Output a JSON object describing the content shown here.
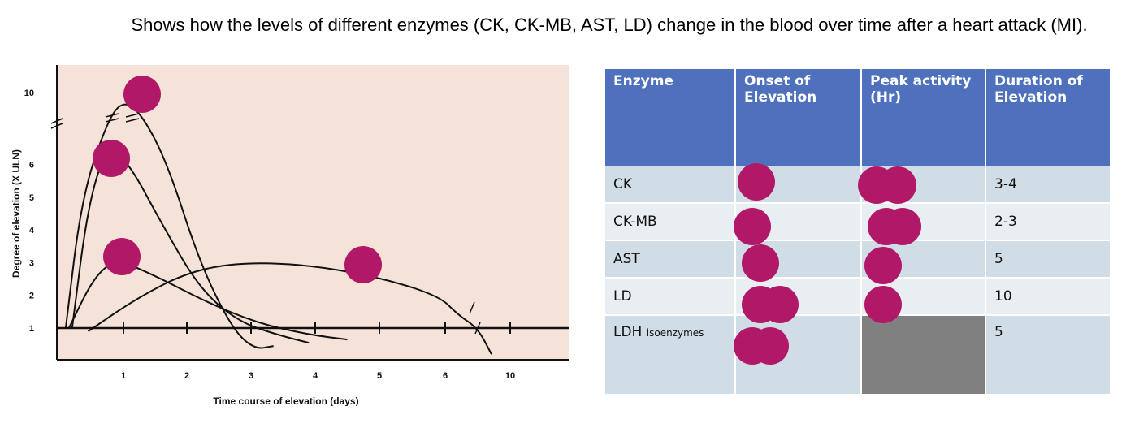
{
  "caption": "Shows how the levels of different enzymes (CK, CK-MB, AST, LD) change in the blood over time after a heart attack (MI).",
  "chart_data": {
    "type": "line",
    "xlabel": "Time course of elevation (days)",
    "ylabel": "Degree of elevation (X ULN)",
    "x_ticks": [
      "1",
      "2",
      "3",
      "4",
      "5",
      "6",
      "10"
    ],
    "y_ticks": [
      "1",
      "2",
      "3",
      "4",
      "5",
      "6",
      "10"
    ],
    "background": "#f5e3d9",
    "line_color": "#111111",
    "series": [
      {
        "points": [
          [
            0.1,
            1
          ],
          [
            0.35,
            5
          ],
          [
            0.75,
            8.5
          ],
          [
            1,
            9.6
          ],
          [
            1.3,
            8.8
          ],
          [
            1.7,
            6
          ],
          [
            2.2,
            3
          ],
          [
            2.7,
            1
          ],
          [
            3.05,
            0.35
          ],
          [
            3.35,
            0.45
          ]
        ]
      },
      {
        "points": [
          [
            0.2,
            1
          ],
          [
            0.45,
            4.8
          ],
          [
            0.75,
            6.6
          ],
          [
            1.1,
            6
          ],
          [
            1.6,
            4.2
          ],
          [
            2.2,
            2.2
          ],
          [
            2.8,
            1.2
          ],
          [
            3.4,
            0.8
          ],
          [
            3.9,
            0.55
          ]
        ]
      },
      {
        "points": [
          [
            0.15,
            1
          ],
          [
            0.55,
            2.6
          ],
          [
            0.9,
            3.1
          ],
          [
            1.5,
            2.6
          ],
          [
            2.3,
            1.8
          ],
          [
            3.1,
            1.15
          ],
          [
            3.9,
            0.8
          ],
          [
            4.5,
            0.65
          ]
        ]
      },
      {
        "points": [
          [
            0.45,
            0.9
          ],
          [
            1.2,
            1.9
          ],
          [
            2,
            2.7
          ],
          [
            2.8,
            3
          ],
          [
            3.8,
            2.95
          ],
          [
            4.9,
            2.6
          ],
          [
            5.9,
            2
          ],
          [
            6.8,
            1.4
          ],
          [
            8,
            1
          ],
          [
            8.85,
            0.2
          ]
        ]
      }
    ]
  },
  "table": {
    "headers": [
      "Enzyme",
      "Onset of Elevation",
      "Peak activity (Hr)",
      "Duration of Elevation"
    ],
    "rows": [
      {
        "enzyme": "CK",
        "enzyme_suffix": "",
        "duration": "3-4"
      },
      {
        "enzyme": "CK-MB",
        "enzyme_suffix": "",
        "duration": "2-3"
      },
      {
        "enzyme": "AST",
        "enzyme_suffix": "",
        "duration": "5"
      },
      {
        "enzyme": "LD",
        "enzyme_suffix": "",
        "duration": "10"
      },
      {
        "enzyme": "LDH",
        "enzyme_suffix": "isoenzymes",
        "duration": "5"
      }
    ]
  },
  "highlight_color": "#b21868"
}
